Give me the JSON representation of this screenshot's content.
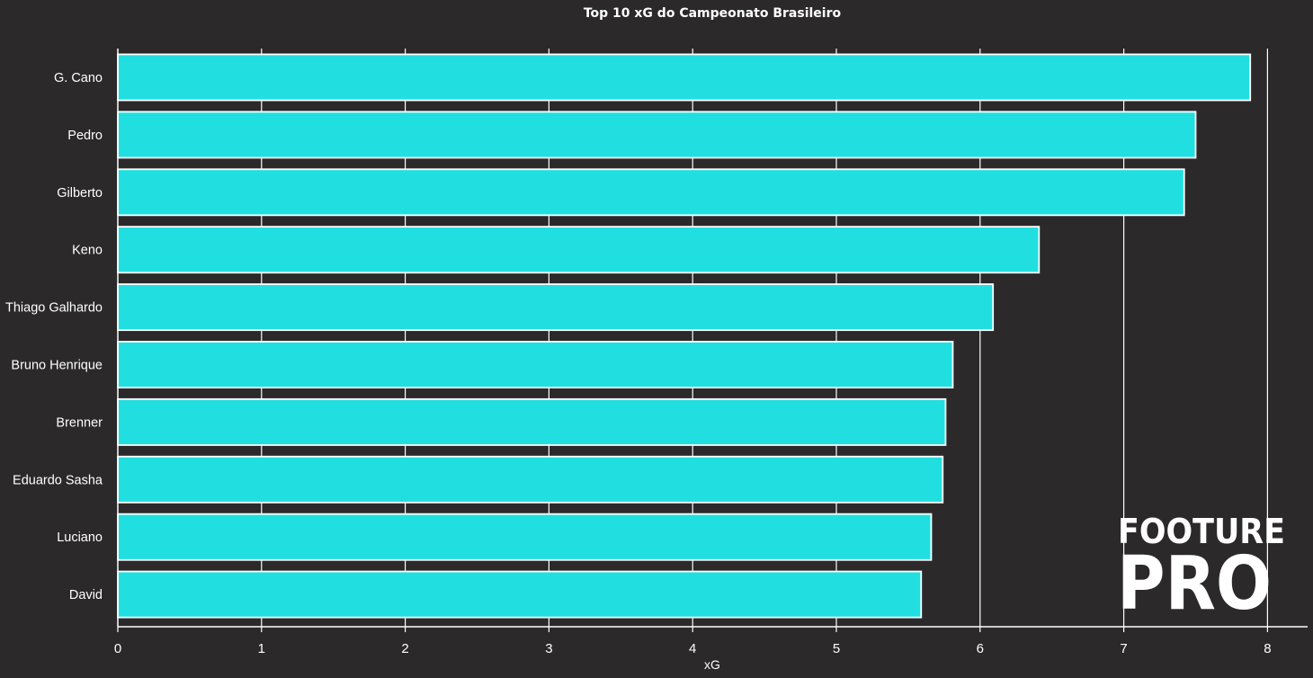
{
  "chart_data": {
    "type": "bar",
    "orientation": "horizontal",
    "title": "Top 10 xG do Campeonato Brasileiro",
    "xlabel": "xG",
    "ylabel": "",
    "categories": [
      "G. Cano",
      "Pedro",
      "Gilberto",
      "Keno",
      "Thiago Galhardo",
      "Bruno Henrique",
      "Brenner",
      "Eduardo Sasha",
      "Luciano",
      "David"
    ],
    "values": [
      7.88,
      7.5,
      7.42,
      6.41,
      6.09,
      5.81,
      5.76,
      5.74,
      5.66,
      5.59
    ],
    "xlim": [
      0,
      8.27
    ],
    "xticks": [
      "0",
      "1",
      "2",
      "3",
      "4",
      "5",
      "6",
      "7",
      "8"
    ],
    "grid": "vertical",
    "legend": "none",
    "colors": {
      "background": "#2b292a",
      "bar": "#21dfe0",
      "bar_edge": "#ffffff",
      "text": "#ffffff",
      "grid": "#ffffff"
    }
  },
  "watermark": {
    "line1": "FOOTURE",
    "line2": "PRO"
  }
}
